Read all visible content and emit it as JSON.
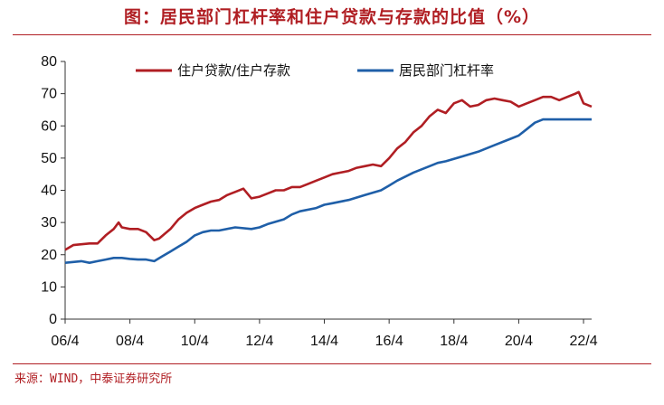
{
  "title": "图：居民部门杠杆率和住户贷款与存款的比值（%）",
  "source": "来源：WIND，中泰证券研究所",
  "chart_data": {
    "type": "line",
    "title": "图：居民部门杠杆率和住户贷款与存款的比值（%）",
    "xlabel": "",
    "ylabel": "",
    "ylim": [
      0,
      80
    ],
    "yticks": [
      0,
      10,
      20,
      30,
      40,
      50,
      60,
      70,
      80
    ],
    "xlim": [
      2006.25,
      2022.5
    ],
    "xtick_labels": [
      "06/4",
      "08/4",
      "10/4",
      "12/4",
      "14/4",
      "16/4",
      "18/4",
      "20/4",
      "22/4"
    ],
    "xtick_values": [
      2006.25,
      2008.25,
      2010.25,
      2012.25,
      2014.25,
      2016.25,
      2018.25,
      2020.25,
      2022.25
    ],
    "grid": false,
    "legend": "top",
    "series": [
      {
        "name": "住户贷款/住户存款",
        "color": "#b01e23",
        "x": [
          2006.25,
          2006.5,
          2007.0,
          2007.25,
          2007.5,
          2007.75,
          2007.9,
          2008.0,
          2008.25,
          2008.5,
          2008.75,
          2009.0,
          2009.15,
          2009.5,
          2009.75,
          2010.0,
          2010.25,
          2010.5,
          2010.75,
          2011.0,
          2011.25,
          2011.5,
          2011.75,
          2012.0,
          2012.25,
          2012.5,
          2012.75,
          2013.0,
          2013.25,
          2013.5,
          2013.75,
          2014.0,
          2014.25,
          2014.5,
          2014.75,
          2015.0,
          2015.25,
          2015.5,
          2015.75,
          2016.0,
          2016.25,
          2016.5,
          2016.75,
          2017.0,
          2017.25,
          2017.5,
          2017.75,
          2018.0,
          2018.25,
          2018.5,
          2018.75,
          2019.0,
          2019.25,
          2019.5,
          2019.75,
          2020.0,
          2020.25,
          2020.5,
          2020.75,
          2021.0,
          2021.25,
          2021.5,
          2021.75,
          2022.0,
          2022.1,
          2022.25,
          2022.5
        ],
        "y": [
          21.5,
          23,
          23.5,
          23.5,
          26,
          28,
          30,
          28.5,
          28,
          28,
          27,
          24.5,
          25,
          28,
          31,
          33,
          34.5,
          35.5,
          36.5,
          37,
          38.5,
          39.5,
          40.5,
          37.5,
          38,
          39,
          40,
          40,
          41,
          41,
          42,
          43,
          44,
          45,
          45.5,
          46,
          47,
          47.5,
          48,
          47.5,
          50,
          53,
          55,
          58,
          60,
          63,
          65,
          64,
          67,
          68,
          66,
          66.5,
          68,
          68.5,
          68,
          67.5,
          66,
          67,
          68,
          69,
          69,
          68,
          69,
          70,
          70.5,
          67,
          66
        ]
      },
      {
        "name": "居民部门杠杆率",
        "color": "#1f5fa8",
        "x": [
          2006.25,
          2006.75,
          2007.0,
          2007.25,
          2007.5,
          2007.75,
          2008.0,
          2008.25,
          2008.5,
          2008.75,
          2009.0,
          2009.25,
          2009.5,
          2009.75,
          2010.0,
          2010.25,
          2010.5,
          2010.75,
          2011.0,
          2011.5,
          2012.0,
          2012.25,
          2012.5,
          2013.0,
          2013.25,
          2013.5,
          2014.0,
          2014.25,
          2014.5,
          2015.0,
          2015.5,
          2016.0,
          2016.25,
          2016.5,
          2017.0,
          2017.5,
          2017.75,
          2018.0,
          2018.5,
          2019.0,
          2019.5,
          2020.0,
          2020.25,
          2020.5,
          2020.75,
          2021.0,
          2021.5,
          2022.0,
          2022.5
        ],
        "y": [
          17.5,
          18,
          17.5,
          18,
          18.5,
          19,
          19,
          18.7,
          18.5,
          18.5,
          18,
          19.5,
          21,
          22.5,
          24,
          26,
          27,
          27.5,
          27.5,
          28.5,
          28,
          28.5,
          29.5,
          31,
          32.5,
          33.5,
          34.5,
          35.5,
          36,
          37,
          38.5,
          40,
          41.5,
          43,
          45.5,
          47.5,
          48.5,
          49,
          50.5,
          52,
          54,
          56,
          57,
          59,
          61,
          62,
          62,
          62,
          62
        ]
      }
    ]
  }
}
